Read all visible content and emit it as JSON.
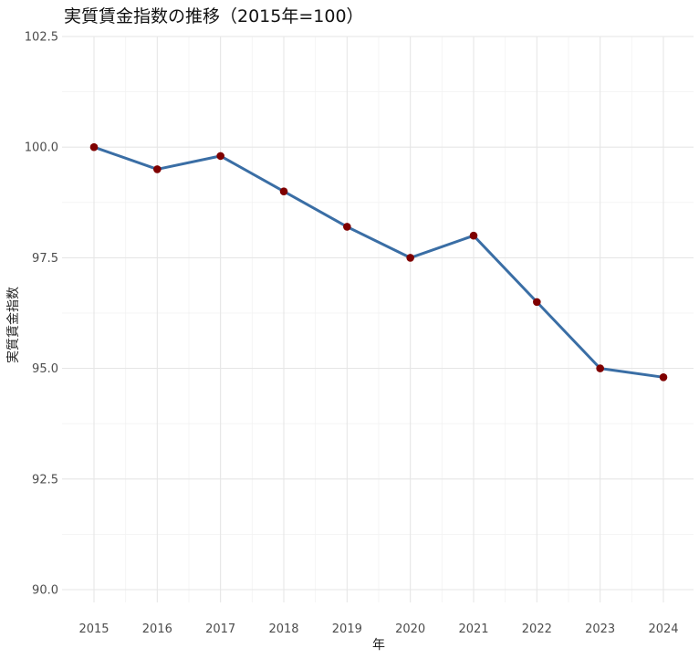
{
  "chart_data": {
    "type": "line",
    "title": "実質賃金指数の推移（2015年=100）",
    "xlabel": "年",
    "ylabel": "実質賃金指数",
    "x": [
      2015,
      2016,
      2017,
      2018,
      2019,
      2020,
      2021,
      2022,
      2023,
      2024
    ],
    "x_tick_labels": [
      "2015",
      "2016",
      "2017",
      "2018",
      "2019",
      "2020",
      "2021",
      "2022",
      "2023",
      "2024"
    ],
    "series": [
      {
        "values": [
          100.0,
          99.5,
          99.8,
          99.0,
          98.2,
          97.5,
          98.0,
          96.5,
          95.0,
          94.8
        ]
      }
    ],
    "ylim": [
      90.0,
      102.5
    ],
    "y_ticks": [
      90.0,
      92.5,
      95.0,
      97.5,
      100.0,
      102.5
    ],
    "y_tick_labels": [
      "90.0",
      "92.5",
      "95.0",
      "97.5",
      "100.0",
      "102.5"
    ],
    "grid": true,
    "line_color": "#3a6ea5",
    "point_color": "#7f0000"
  }
}
